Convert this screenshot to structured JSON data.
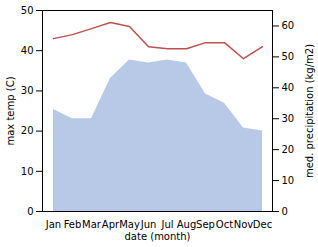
{
  "chart_data": {
    "type": "line",
    "categories": [
      "Jan",
      "Feb",
      "Mar",
      "Apr",
      "May",
      "Jun",
      "Jul",
      "Aug",
      "Sep",
      "Oct",
      "Nov",
      "Dec"
    ],
    "series": [
      {
        "type": "area",
        "axis": "y2",
        "color": "#b8c9e8",
        "values": [
          33,
          30,
          30,
          43,
          49,
          48,
          49,
          48,
          38,
          35,
          27,
          26
        ]
      },
      {
        "type": "line",
        "color": "#c0504d",
        "values": [
          43,
          44,
          45.5,
          47,
          46,
          41,
          40.5,
          40.5,
          42,
          42,
          38,
          41
        ]
      }
    ],
    "xlabel": "date (month)",
    "ylabel": "max temp (C)",
    "y2label": "med. precipitation (kg/m2)",
    "ylim": [
      0,
      50
    ],
    "yticks": [
      0,
      10,
      20,
      30,
      40,
      50
    ],
    "y2lim": [
      0,
      65
    ],
    "y2ticks": [
      0,
      10,
      20,
      30,
      40,
      50,
      60
    ],
    "grid": false
  }
}
